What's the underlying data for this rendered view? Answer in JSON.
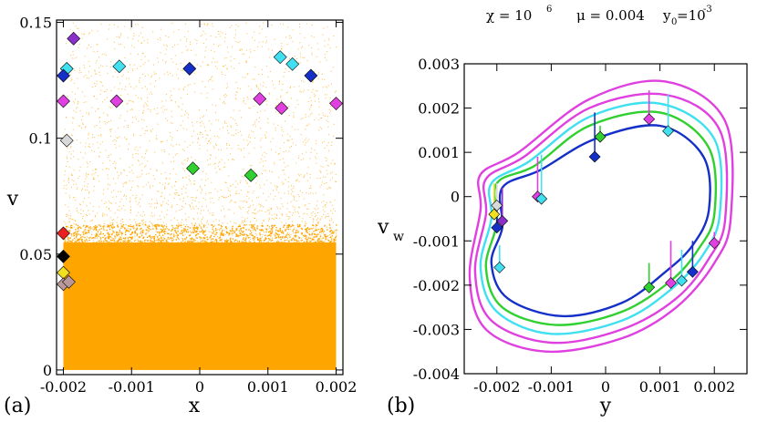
{
  "figure": {
    "title": {
      "chi_base": "χ = 10",
      "chi_exp": "6",
      "mu": "μ = 0.004",
      "y0_base": "y",
      "y0_sub": "0",
      "y0_eq": "=10",
      "y0_exp": "-3"
    }
  },
  "chart_data": [
    {
      "type": "scatter",
      "panel_label": "(a)",
      "xlabel": "x",
      "ylabel": "v",
      "xlim": [
        -0.0021,
        0.0021
      ],
      "ylim": [
        -0.002,
        0.151
      ],
      "xticks": [
        -0.002,
        -0.001,
        0,
        0.001,
        0.002
      ],
      "xtick_labels": [
        "-0.002",
        "-0.001",
        "0",
        "0.001",
        "0.002"
      ],
      "yticks": [
        0,
        0.05,
        0.1,
        0.15
      ],
      "ytick_labels": [
        "0",
        "0.05",
        "0.1",
        "0.15"
      ],
      "grid": false,
      "background_cloud": {
        "color": "#FFA500",
        "dense_band_v": [
          0,
          0.055
        ],
        "sparse_band_v": [
          0.055,
          0.15
        ]
      },
      "markers": [
        {
          "x": -0.00185,
          "v": 0.143,
          "color": "#8B2FC9"
        },
        {
          "x": -0.00195,
          "v": 0.13,
          "color": "#40E0F0"
        },
        {
          "x": -0.002,
          "v": 0.127,
          "color": "#1530C8"
        },
        {
          "x": -0.00118,
          "v": 0.131,
          "color": "#40E0F0"
        },
        {
          "x": -0.00015,
          "v": 0.13,
          "color": "#1530C8"
        },
        {
          "x": 0.00118,
          "v": 0.135,
          "color": "#40E0F0"
        },
        {
          "x": 0.00136,
          "v": 0.132,
          "color": "#40E0F0"
        },
        {
          "x": 0.00163,
          "v": 0.127,
          "color": "#1530C8"
        },
        {
          "x": -0.002,
          "v": 0.116,
          "color": "#E040E0"
        },
        {
          "x": -0.00122,
          "v": 0.116,
          "color": "#E040E0"
        },
        {
          "x": 0.00088,
          "v": 0.117,
          "color": "#E040E0"
        },
        {
          "x": 0.0012,
          "v": 0.113,
          "color": "#E040E0"
        },
        {
          "x": 0.002,
          "v": 0.115,
          "color": "#E040E0"
        },
        {
          "x": -0.00195,
          "v": 0.099,
          "color": "#D8D8D8"
        },
        {
          "x": -0.0001,
          "v": 0.087,
          "color": "#30D030"
        },
        {
          "x": 0.00075,
          "v": 0.084,
          "color": "#30D030"
        },
        {
          "x": -0.002,
          "v": 0.059,
          "color": "#E82020"
        },
        {
          "x": -0.002,
          "v": 0.049,
          "color": "#000000"
        },
        {
          "x": -0.002,
          "v": 0.042,
          "color": "#F0E020"
        },
        {
          "x": -0.002,
          "v": 0.037,
          "color": "#B89898"
        },
        {
          "x": -0.00192,
          "v": 0.038,
          "color": "#B89898"
        }
      ]
    },
    {
      "type": "line",
      "panel_label": "(b)",
      "xlabel": "y",
      "ylabel": "v",
      "ylabel_sub": "w",
      "xlim": [
        -0.0026,
        0.0026
      ],
      "ylim": [
        -0.004,
        0.003
      ],
      "xticks": [
        -0.002,
        -0.001,
        0,
        0.001,
        0.002
      ],
      "xtick_labels": [
        "-0.002",
        "-0.001",
        "0",
        "0.001",
        "0.002"
      ],
      "yticks": [
        -0.004,
        -0.003,
        -0.002,
        -0.001,
        0,
        0.001,
        0.002,
        0.003
      ],
      "ytick_labels": [
        "-0.004",
        "-0.003",
        "-0.002",
        "-0.001",
        "0",
        "0.001",
        "0.002",
        "0.003"
      ],
      "grid": false,
      "loops": [
        {
          "color": "#1530C8",
          "points": [
            [
              -0.0019,
              -0.0007
            ],
            [
              -0.0021,
              -0.0015
            ],
            [
              -0.0018,
              -0.0023
            ],
            [
              -0.0008,
              -0.0027
            ],
            [
              0.0003,
              -0.0024
            ],
            [
              0.0011,
              -0.0017
            ],
            [
              0.0016,
              -0.0011
            ],
            [
              0.0019,
              -0.0003
            ],
            [
              0.0018,
              0.0009
            ],
            [
              0.001,
              0.0016
            ],
            [
              -0.0002,
              0.0013
            ],
            [
              -0.0012,
              0.0006
            ],
            [
              -0.0019,
              0.0002
            ]
          ]
        },
        {
          "color": "#30D030",
          "points": [
            [
              -0.002,
              -0.0006
            ],
            [
              -0.0022,
              -0.0016
            ],
            [
              -0.0019,
              -0.0025
            ],
            [
              -0.0009,
              -0.0029
            ],
            [
              0.0003,
              -0.0026
            ],
            [
              0.0012,
              -0.0019
            ],
            [
              0.0017,
              -0.0012
            ],
            [
              0.002,
              -0.0004
            ],
            [
              0.0019,
              0.0011
            ],
            [
              0.001,
              0.0019
            ],
            [
              -0.0003,
              0.0016
            ],
            [
              -0.0013,
              0.0007
            ],
            [
              -0.002,
              0.0003
            ]
          ]
        },
        {
          "color": "#40E0F0",
          "points": [
            [
              -0.0021,
              -0.0005
            ],
            [
              -0.0023,
              -0.0016
            ],
            [
              -0.002,
              -0.0026
            ],
            [
              -0.001,
              -0.0031
            ],
            [
              0.0003,
              -0.0028
            ],
            [
              0.0012,
              -0.0021
            ],
            [
              0.0018,
              -0.0013
            ],
            [
              0.0021,
              -0.0004
            ],
            [
              0.002,
              0.0013
            ],
            [
              0.001,
              0.0021
            ],
            [
              -0.0003,
              0.0018
            ],
            [
              -0.0014,
              0.0008
            ],
            [
              -0.0021,
              0.0003
            ]
          ]
        },
        {
          "color": "#E040E0",
          "points": [
            [
              -0.0022,
              -0.0004
            ],
            [
              -0.0024,
              -0.0017
            ],
            [
              -0.0021,
              -0.0028
            ],
            [
              -0.001,
              -0.0033
            ],
            [
              0.0003,
              -0.003
            ],
            [
              0.0013,
              -0.0023
            ],
            [
              0.0019,
              -0.0014
            ],
            [
              0.0022,
              -0.0005
            ],
            [
              0.0021,
              0.0015
            ],
            [
              0.0011,
              0.0023
            ],
            [
              -0.0003,
              0.002
            ],
            [
              -0.0015,
              0.0009
            ],
            [
              -0.0022,
              0.0004
            ]
          ]
        },
        {
          "color": "#E040E0",
          "points": [
            [
              -0.0023,
              -0.0003
            ],
            [
              -0.0025,
              -0.0018
            ],
            [
              -0.0022,
              -0.003
            ],
            [
              -0.0011,
              -0.0035
            ],
            [
              0.0003,
              -0.0032
            ],
            [
              0.0013,
              -0.0025
            ],
            [
              0.002,
              -0.0015
            ],
            [
              0.0023,
              -0.0005
            ],
            [
              0.0022,
              0.0017
            ],
            [
              0.0011,
              0.0026
            ],
            [
              -0.0003,
              0.0022
            ],
            [
              -0.0016,
              0.001
            ],
            [
              -0.0023,
              0.0005
            ]
          ]
        }
      ],
      "markers": [
        {
          "y": -0.0002,
          "vw": 0.0009,
          "color": "#1530C8",
          "stem_to": 0.0019
        },
        {
          "y": -0.0001,
          "vw": 0.00135,
          "color": "#30D030",
          "stem_to": 0.0016
        },
        {
          "y": 0.0008,
          "vw": 0.00175,
          "color": "#E040E0",
          "stem_to": 0.0024
        },
        {
          "y": 0.00115,
          "vw": 0.00148,
          "color": "#40E0F0",
          "stem_to": 0.0023
        },
        {
          "y": -0.00125,
          "vw": 0.0,
          "color": "#E040E0",
          "stem_to": 0.0009
        },
        {
          "y": -0.00118,
          "vw": -5e-05,
          "color": "#40E0F0",
          "stem_to": 0.00095
        },
        {
          "y": -0.0019,
          "vw": -0.00055,
          "color": "#8B2FC9",
          "stem_to": 0.0002
        },
        {
          "y": -0.002,
          "vw": -0.0002,
          "color": "#D8D8D8",
          "stem_to": 0.0003
        },
        {
          "y": -0.00205,
          "vw": -0.0004,
          "color": "#F0E020",
          "stem_to": 0.0003
        },
        {
          "y": -0.002,
          "vw": -0.0007,
          "color": "#1530C8",
          "stem_to": -0.0002
        },
        {
          "y": -0.00195,
          "vw": -0.0016,
          "color": "#40E0F0",
          "stem_to": -0.0011
        },
        {
          "y": 0.0008,
          "vw": -0.00205,
          "color": "#30D030",
          "stem_to": -0.0015
        },
        {
          "y": 0.0012,
          "vw": -0.00195,
          "color": "#E040E0",
          "stem_to": -0.001
        },
        {
          "y": 0.0014,
          "vw": -0.0019,
          "color": "#40E0F0",
          "stem_to": -0.0012
        },
        {
          "y": 0.0016,
          "vw": -0.0017,
          "color": "#1530C8",
          "stem_to": -0.001
        },
        {
          "y": 0.002,
          "vw": -0.00105,
          "color": "#E040E0",
          "stem_to": -0.0008
        }
      ]
    }
  ]
}
